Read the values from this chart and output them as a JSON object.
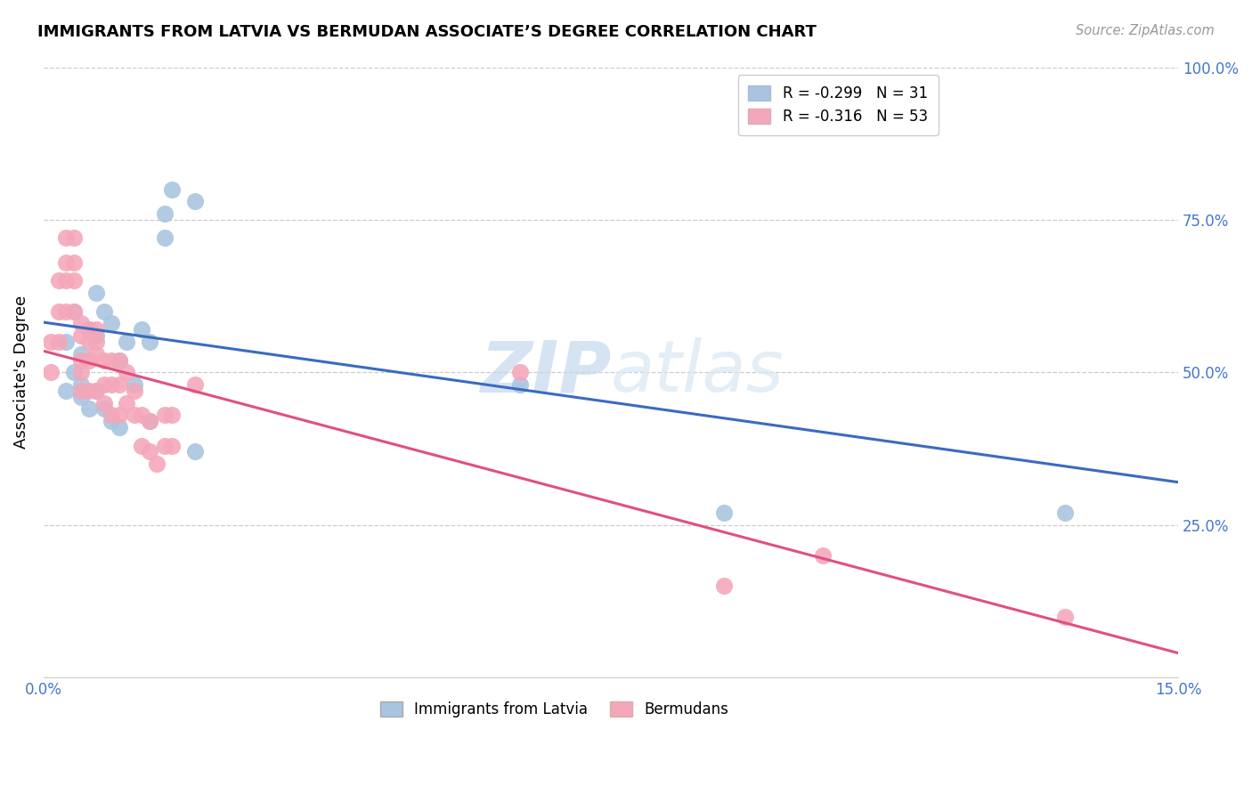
{
  "title": "IMMIGRANTS FROM LATVIA VS BERMUDAN ASSOCIATE’S DEGREE CORRELATION CHART",
  "source": "Source: ZipAtlas.com",
  "ylabel": "Associate's Degree",
  "xlim": [
    0.0,
    0.15
  ],
  "ylim": [
    0.0,
    1.0
  ],
  "blue_label": "Immigrants from Latvia",
  "pink_label": "Bermudans",
  "blue_R": "-0.299",
  "blue_N": "31",
  "pink_R": "-0.316",
  "pink_N": "53",
  "blue_color": "#a8c4e0",
  "pink_color": "#f4a7b9",
  "blue_line_color": "#3a6bbf",
  "pink_line_color": "#e05080",
  "watermark_zip": "ZIP",
  "watermark_atlas": "atlas",
  "blue_scatter_x": [
    0.003,
    0.003,
    0.004,
    0.004,
    0.005,
    0.005,
    0.005,
    0.006,
    0.006,
    0.007,
    0.007,
    0.007,
    0.008,
    0.008,
    0.009,
    0.009,
    0.01,
    0.01,
    0.011,
    0.012,
    0.013,
    0.014,
    0.014,
    0.016,
    0.016,
    0.017,
    0.02,
    0.02,
    0.063,
    0.09,
    0.135
  ],
  "blue_scatter_y": [
    0.55,
    0.47,
    0.6,
    0.5,
    0.53,
    0.48,
    0.46,
    0.57,
    0.44,
    0.63,
    0.56,
    0.47,
    0.6,
    0.44,
    0.58,
    0.42,
    0.52,
    0.41,
    0.55,
    0.48,
    0.57,
    0.55,
    0.42,
    0.76,
    0.72,
    0.8,
    0.78,
    0.37,
    0.48,
    0.27,
    0.27
  ],
  "blue_line_x0": 0.0,
  "blue_line_y0": 0.582,
  "blue_line_x1": 0.15,
  "blue_line_y1": 0.32,
  "pink_scatter_x": [
    0.001,
    0.001,
    0.002,
    0.002,
    0.002,
    0.003,
    0.003,
    0.003,
    0.003,
    0.004,
    0.004,
    0.004,
    0.004,
    0.005,
    0.005,
    0.005,
    0.005,
    0.005,
    0.006,
    0.006,
    0.006,
    0.006,
    0.007,
    0.007,
    0.007,
    0.007,
    0.008,
    0.008,
    0.008,
    0.009,
    0.009,
    0.009,
    0.01,
    0.01,
    0.01,
    0.011,
    0.011,
    0.012,
    0.012,
    0.013,
    0.013,
    0.014,
    0.014,
    0.015,
    0.016,
    0.016,
    0.017,
    0.017,
    0.02,
    0.063,
    0.09,
    0.103,
    0.135
  ],
  "pink_scatter_y": [
    0.55,
    0.5,
    0.65,
    0.6,
    0.55,
    0.72,
    0.68,
    0.65,
    0.6,
    0.72,
    0.68,
    0.65,
    0.6,
    0.58,
    0.56,
    0.52,
    0.5,
    0.47,
    0.57,
    0.55,
    0.52,
    0.47,
    0.57,
    0.55,
    0.53,
    0.47,
    0.52,
    0.48,
    0.45,
    0.52,
    0.48,
    0.43,
    0.52,
    0.48,
    0.43,
    0.5,
    0.45,
    0.47,
    0.43,
    0.43,
    0.38,
    0.42,
    0.37,
    0.35,
    0.43,
    0.38,
    0.43,
    0.38,
    0.48,
    0.5,
    0.15,
    0.2,
    0.1
  ],
  "pink_line_x0": 0.0,
  "pink_line_y0": 0.535,
  "pink_line_x1": 0.15,
  "pink_line_y1": 0.04
}
